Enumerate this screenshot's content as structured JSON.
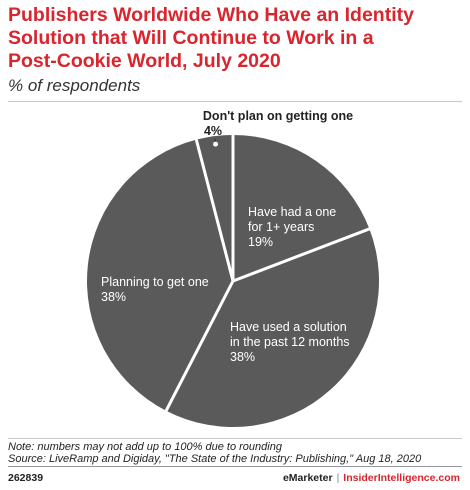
{
  "title_lines": [
    "Publishers Worldwide Who Have an Identity",
    "Solution that Will Continue to Work in a",
    "Post-Cookie World, July 2020"
  ],
  "subtitle": "% of respondents",
  "chart_data": {
    "type": "pie",
    "title": "Publishers Worldwide Who Have an Identity Solution that Will Continue to Work in a Post-Cookie World, July 2020",
    "subtitle": "% of respondents",
    "slice_color": "#5a5a5a",
    "separator_color": "#ffffff",
    "slices": [
      {
        "label_lines": [
          "Have had a one",
          "for 1+ years"
        ],
        "value": 19,
        "value_text": "19%"
      },
      {
        "label_lines": [
          "Have used a solution",
          "in the past 12 months"
        ],
        "value": 38,
        "value_text": "38%"
      },
      {
        "label_lines": [
          "Planning to get one"
        ],
        "value": 38,
        "value_text": "38%"
      },
      {
        "label_lines": [
          "Don't plan on getting one"
        ],
        "value": 4,
        "value_text": "4%"
      }
    ]
  },
  "notes": [
    "Note: numbers may not add up to 100% due to rounding",
    "Source: LiveRamp and Digiday, \"The State of the Industry: Publishing,\" Aug 18, 2020"
  ],
  "footer": {
    "chart_id": "262839",
    "brand_emarketer": "eMarketer",
    "separator": "|",
    "brand_insider": "InsiderIntelligence.com"
  }
}
